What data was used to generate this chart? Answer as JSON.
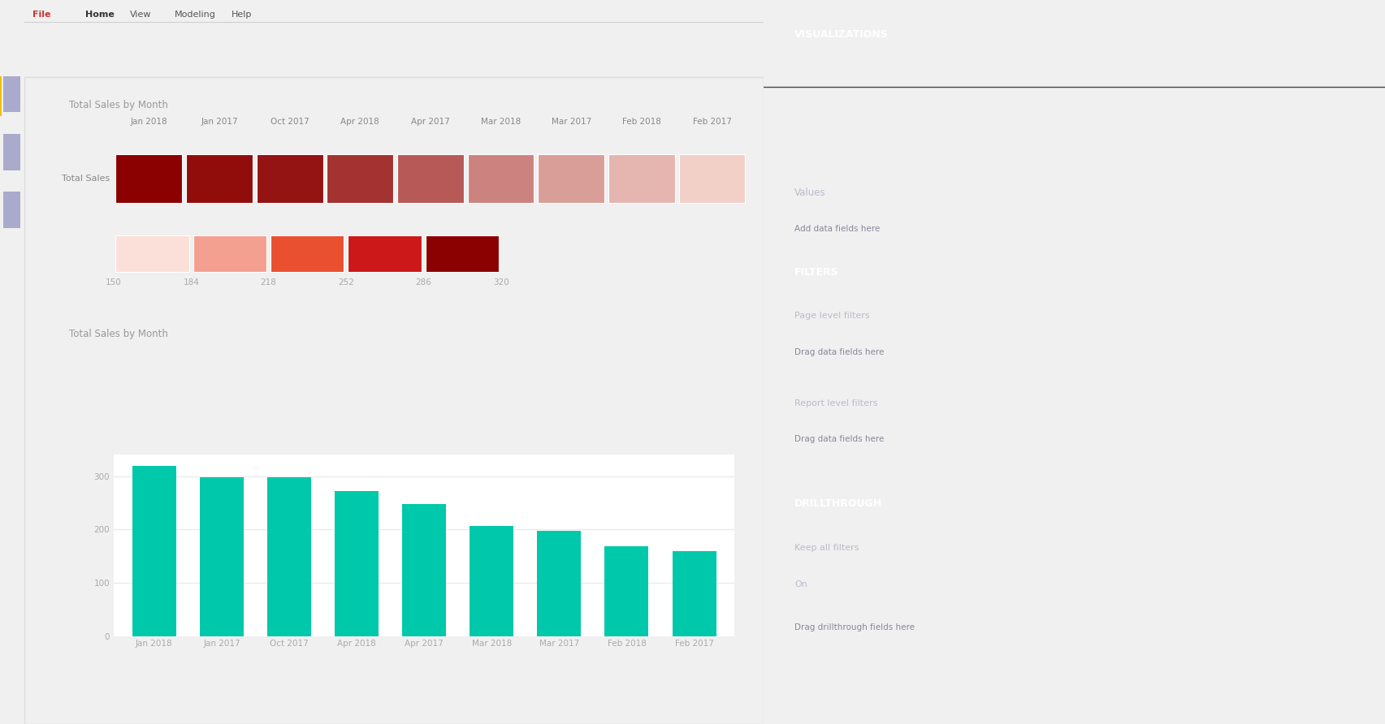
{
  "title1": "Total Sales by Month",
  "title2": "Total Sales by Month",
  "months": [
    "Jan 2018",
    "Jan 2017",
    "Oct 2017",
    "Apr 2018",
    "Apr 2017",
    "Mar 2018",
    "Mar 2017",
    "Feb 2018",
    "Feb 2017"
  ],
  "row_label": "Total Sales",
  "heatmap_values": [
    320,
    310,
    305,
    282,
    252,
    220,
    200,
    182,
    162
  ],
  "bar_values": [
    320,
    298,
    298,
    272,
    248,
    207,
    198,
    168,
    160
  ],
  "bar_color": "#00C8AA",
  "colorbar_ticks": [
    "150",
    "184",
    "218",
    "252",
    "286",
    "320"
  ],
  "vmin": 150,
  "vmax": 320,
  "title_color": "#999999",
  "label_color": "#888888",
  "tick_color": "#aaaaaa",
  "bg_color": "#ffffff",
  "content_bg": "#f8f8f8",
  "grid_color": "#e8e8e8",
  "legend_colors": [
    "#FAE0D8",
    "#F4A090",
    "#E85030",
    "#CC1818",
    "#8B0000"
  ],
  "bar_yticks": [
    0,
    100,
    200,
    300
  ],
  "bar_ylim": [
    0,
    340
  ],
  "sidebar_bg": "#1e1e30",
  "right_panel_bg": "#252535",
  "toolbar_bg": "#f0f0f0",
  "toolbar_border": "#d0d0d0",
  "content_border": "#cccccc"
}
